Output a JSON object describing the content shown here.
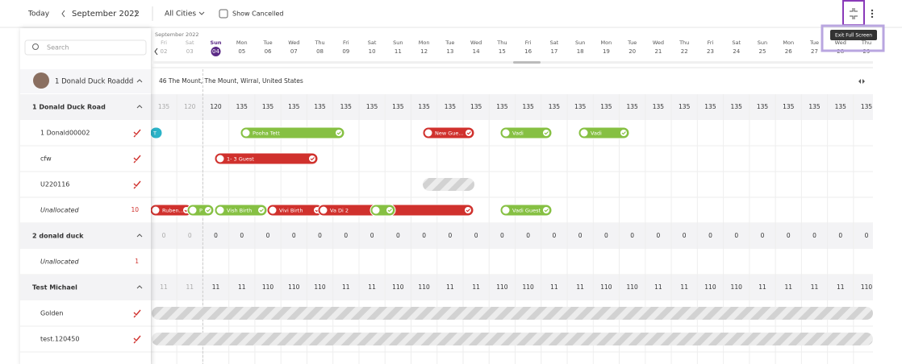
{
  "toolbar": {
    "today": "Today",
    "month": "September 2022",
    "city_filter": "All Cities",
    "show_cancelled": "Show Cancelled",
    "tooltip": "Exit Full Screen"
  },
  "sidebar": {
    "search": "Search",
    "property": "1 Donald Duck Roaddd"
  },
  "calendar": {
    "month_label": "September 2022",
    "address": "46 The Mount, The Mount, Wirral, United States",
    "days": [
      {
        "dow": "Fri",
        "date": "02",
        "past": true
      },
      {
        "dow": "Sat",
        "date": "03",
        "past": true
      },
      {
        "dow": "Sun",
        "date": "04",
        "selected": true
      },
      {
        "dow": "Mon",
        "date": "05"
      },
      {
        "dow": "Tue",
        "date": "06"
      },
      {
        "dow": "Wed",
        "date": "07"
      },
      {
        "dow": "Thu",
        "date": "08"
      },
      {
        "dow": "Fri",
        "date": "09"
      },
      {
        "dow": "Sat",
        "date": "10"
      },
      {
        "dow": "Sun",
        "date": "11"
      },
      {
        "dow": "Mon",
        "date": "12"
      },
      {
        "dow": "Tue",
        "date": "13"
      },
      {
        "dow": "Wed",
        "date": "14"
      },
      {
        "dow": "Thu",
        "date": "15"
      },
      {
        "dow": "Fri",
        "date": "16"
      },
      {
        "dow": "Sat",
        "date": "17"
      },
      {
        "dow": "Sun",
        "date": "18"
      },
      {
        "dow": "Mon",
        "date": "19"
      },
      {
        "dow": "Tue",
        "date": "20"
      },
      {
        "dow": "Wed",
        "date": "21"
      },
      {
        "dow": "Thu",
        "date": "22"
      },
      {
        "dow": "Fri",
        "date": "23"
      },
      {
        "dow": "Sat",
        "date": "24"
      },
      {
        "dow": "Sun",
        "date": "25"
      },
      {
        "dow": "Mon",
        "date": "26"
      },
      {
        "dow": "Tue",
        "date": "27"
      },
      {
        "dow": "Wed",
        "date": "28"
      },
      {
        "dow": "Thu",
        "date": "29"
      }
    ]
  },
  "groups": [
    {
      "name": "1 Donald Duck Road",
      "availability": [
        135,
        120,
        120,
        135,
        135,
        135,
        135,
        135,
        135,
        135,
        135,
        135,
        135,
        135,
        135,
        135,
        135,
        135,
        135,
        135,
        135,
        135,
        135,
        135,
        135,
        135,
        135,
        135
      ],
      "units": [
        {
          "name": "1 Donald00002",
          "bookings": [
            {
              "label": "T",
              "status": "teal"
            },
            {
              "label": "Pooha Tett",
              "status": "green"
            },
            {
              "label": "New Gue...",
              "status": "red"
            },
            {
              "label": "Vadi",
              "status": "green"
            },
            {
              "label": "Vadi",
              "status": "green"
            }
          ]
        },
        {
          "name": "cfw",
          "bookings": [
            {
              "label": "1- 3 Guest",
              "status": "red"
            }
          ]
        },
        {
          "name": "U220116",
          "bookings": [
            {
              "status": "blocked"
            }
          ]
        },
        {
          "name": "Unallocated",
          "count": "10",
          "bookings": [
            {
              "label": "Ruben...",
              "status": "red"
            },
            {
              "label": "P",
              "status": "green"
            },
            {
              "label": "Vish Birth",
              "status": "green"
            },
            {
              "label": "Vivi Birth",
              "status": "red"
            },
            {
              "label": "Va Di 2",
              "status": "red"
            },
            {
              "status": "green"
            },
            {
              "label": "Vadi Guest",
              "status": "green"
            }
          ]
        }
      ]
    },
    {
      "name": "2 donald duck",
      "availability": [
        0,
        0,
        0,
        0,
        0,
        0,
        0,
        0,
        0,
        0,
        0,
        0,
        0,
        0,
        0,
        0,
        0,
        0,
        0,
        0,
        0,
        0,
        0,
        0,
        0,
        0,
        0,
        0
      ],
      "units": [
        {
          "name": "Unallocated",
          "count": "1",
          "bookings": []
        }
      ]
    },
    {
      "name": "Test Michael",
      "availability": [
        11,
        11,
        11,
        11,
        110,
        110,
        110,
        11,
        11,
        110,
        110,
        11,
        11,
        110,
        110,
        11,
        11,
        110,
        110,
        11,
        11,
        110,
        110,
        11,
        11,
        11,
        11,
        110
      ],
      "units": [
        {
          "name": "Golden",
          "bookings": [
            {
              "status": "blocked"
            }
          ]
        },
        {
          "name": "test.120450",
          "bookings": [
            {
              "status": "blocked"
            }
          ]
        }
      ]
    }
  ]
}
